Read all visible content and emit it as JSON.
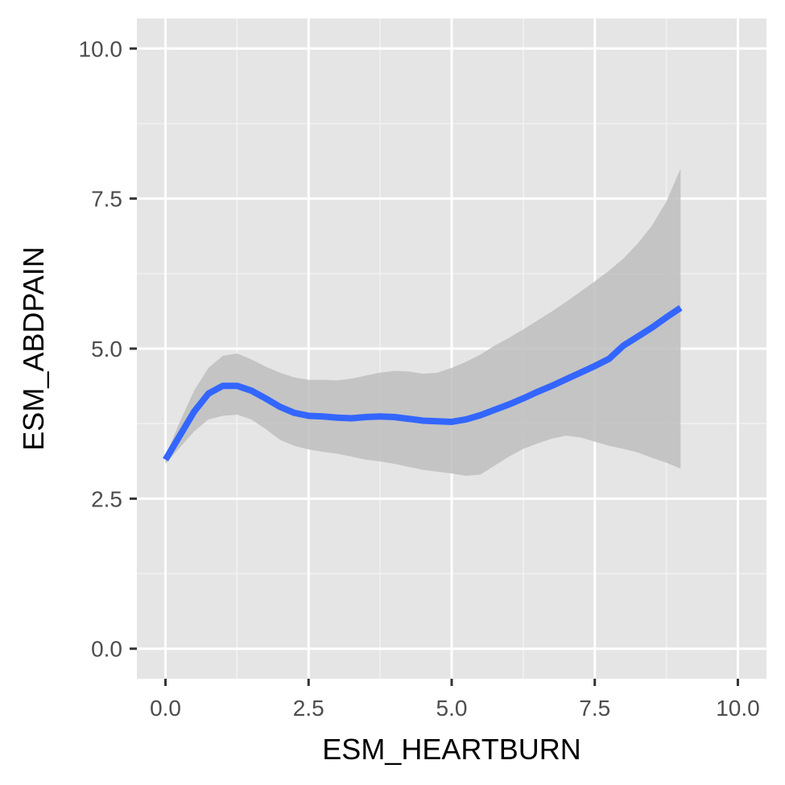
{
  "chart_data": {
    "type": "line",
    "xlabel": "ESM_HEARTBURN",
    "ylabel": "ESM_ABDPAIN",
    "xlim": [
      -0.5,
      10.5
    ],
    "ylim": [
      -0.5,
      10.5
    ],
    "x_ticks": [
      0,
      2.5,
      5,
      7.5,
      10
    ],
    "x_tick_labels": [
      "0.0",
      "2.5",
      "5.0",
      "7.5",
      "10.0"
    ],
    "y_ticks": [
      0,
      2.5,
      5,
      7.5,
      10
    ],
    "y_tick_labels": [
      "0.0",
      "2.5",
      "5.0",
      "7.5",
      "10.0"
    ],
    "grid": true,
    "panel_background": "#E5E5E5",
    "line_color": "#3366FF",
    "ribbon_color": "#BEBEBE",
    "series": [
      {
        "x": [
          0.0,
          0.25,
          0.5,
          0.75,
          1.0,
          1.25,
          1.5,
          1.75,
          2.0,
          2.25,
          2.5,
          2.75,
          3.0,
          3.25,
          3.5,
          3.75,
          4.0,
          4.25,
          4.5,
          4.75,
          5.0,
          5.25,
          5.5,
          5.75,
          6.0,
          6.25,
          6.5,
          6.75,
          7.0,
          7.25,
          7.5,
          7.75,
          8.0,
          8.25,
          8.5,
          8.75,
          9.0
        ],
        "y": [
          3.15,
          3.55,
          3.95,
          4.25,
          4.38,
          4.38,
          4.3,
          4.17,
          4.03,
          3.93,
          3.88,
          3.87,
          3.85,
          3.84,
          3.86,
          3.87,
          3.86,
          3.83,
          3.8,
          3.79,
          3.78,
          3.82,
          3.89,
          3.98,
          4.07,
          4.17,
          4.28,
          4.38,
          4.49,
          4.6,
          4.71,
          4.83,
          5.05,
          5.2,
          5.35,
          5.52,
          5.68
        ],
        "y_lower": [
          3.08,
          3.35,
          3.62,
          3.82,
          3.88,
          3.9,
          3.82,
          3.66,
          3.48,
          3.38,
          3.32,
          3.28,
          3.25,
          3.2,
          3.15,
          3.12,
          3.08,
          3.03,
          2.98,
          2.95,
          2.92,
          2.88,
          2.9,
          3.05,
          3.2,
          3.33,
          3.42,
          3.5,
          3.55,
          3.52,
          3.45,
          3.38,
          3.33,
          3.27,
          3.18,
          3.1,
          3.0
        ],
        "y_upper": [
          3.22,
          3.78,
          4.3,
          4.68,
          4.88,
          4.92,
          4.82,
          4.7,
          4.6,
          4.52,
          4.48,
          4.48,
          4.47,
          4.5,
          4.55,
          4.6,
          4.63,
          4.62,
          4.58,
          4.6,
          4.68,
          4.78,
          4.9,
          5.05,
          5.18,
          5.32,
          5.47,
          5.62,
          5.78,
          5.95,
          6.12,
          6.3,
          6.5,
          6.75,
          7.05,
          7.45,
          8.0
        ]
      }
    ]
  }
}
